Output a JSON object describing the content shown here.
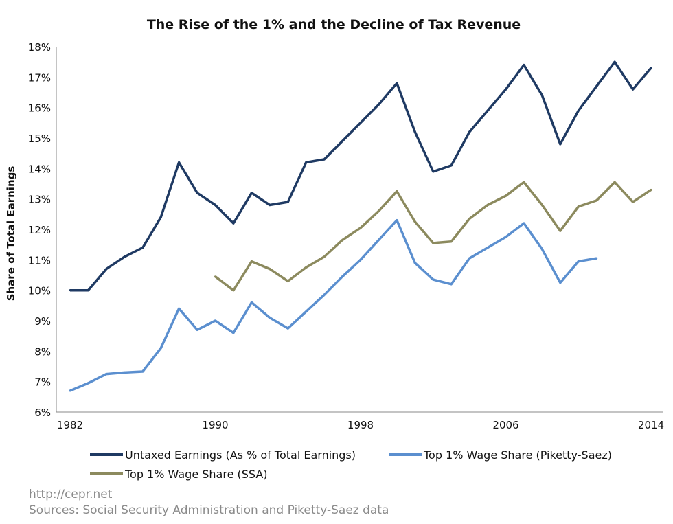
{
  "chart_data": {
    "type": "line",
    "title": "The Rise of the 1% and the Decline of Tax Revenue",
    "xlabel": "",
    "ylabel": "Share of Total Earnings",
    "x": [
      1982,
      1983,
      1984,
      1985,
      1986,
      1987,
      1988,
      1989,
      1990,
      1991,
      1992,
      1993,
      1994,
      1995,
      1996,
      1997,
      1998,
      1999,
      2000,
      2001,
      2002,
      2003,
      2004,
      2005,
      2006,
      2007,
      2008,
      2009,
      2010,
      2011,
      2012,
      2013,
      2014
    ],
    "xticks": [
      "1982",
      "1990",
      "1998",
      "2006",
      "2014"
    ],
    "xlim": [
      1982,
      2014
    ],
    "ylim": [
      6,
      18
    ],
    "yticks": [
      "6%",
      "7%",
      "8%",
      "9%",
      "10%",
      "11%",
      "12%",
      "13%",
      "14%",
      "15%",
      "16%",
      "17%",
      "18%"
    ],
    "grid": false,
    "legend_position": "bottom",
    "series": [
      {
        "name": "Untaxed Earnings (As % of Total Earnings)",
        "color": "#1f3a63",
        "values": [
          10.0,
          10.0,
          10.7,
          11.1,
          11.4,
          12.4,
          14.2,
          13.2,
          12.8,
          12.2,
          13.2,
          12.8,
          12.9,
          14.2,
          14.3,
          14.9,
          15.5,
          16.1,
          16.8,
          15.2,
          13.9,
          14.1,
          15.2,
          15.9,
          16.6,
          17.4,
          16.4,
          14.8,
          15.9,
          16.7,
          17.5,
          16.6,
          17.3
        ]
      },
      {
        "name": "Top 1% Wage Share (Piketty-Saez)",
        "color": "#5b8fcf",
        "values": [
          6.7,
          6.95,
          7.25,
          7.3,
          7.33,
          8.1,
          9.4,
          8.7,
          9.0,
          8.6,
          9.6,
          9.1,
          8.75,
          9.3,
          9.85,
          10.45,
          11.0,
          11.65,
          12.3,
          10.9,
          10.35,
          10.2,
          11.05,
          11.4,
          11.75,
          12.2,
          11.35,
          10.25,
          10.95,
          11.05,
          null,
          null,
          null
        ]
      },
      {
        "name": "Top 1% Wage Share (SSA)",
        "color": "#8c8a5e",
        "values": [
          null,
          null,
          null,
          null,
          null,
          null,
          null,
          null,
          10.45,
          10.0,
          10.95,
          10.7,
          10.3,
          10.75,
          11.1,
          11.65,
          12.05,
          12.6,
          13.25,
          12.25,
          11.55,
          11.6,
          12.35,
          12.8,
          13.1,
          13.55,
          12.8,
          11.95,
          12.75,
          12.95,
          13.55,
          12.9,
          13.3
        ]
      }
    ]
  },
  "footer": {
    "url": "http://cepr.net",
    "sources": "Sources: Social Security Administration and Piketty-Saez data"
  }
}
